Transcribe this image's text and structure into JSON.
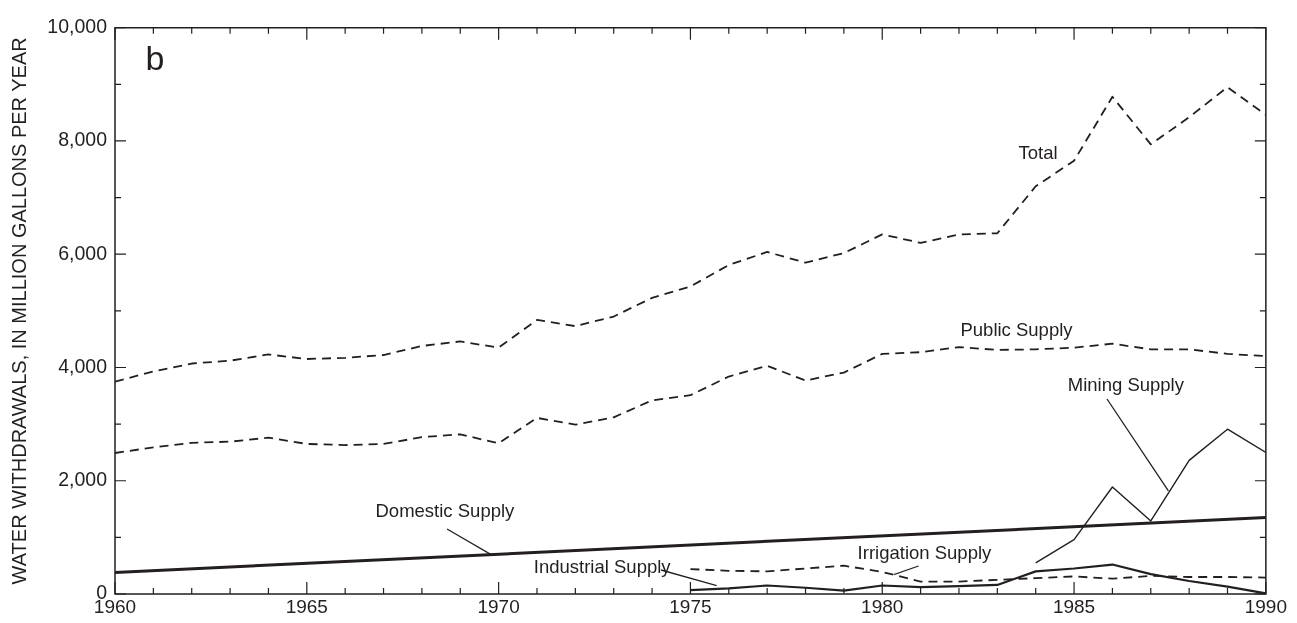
{
  "chart_data": {
    "type": "line",
    "ylabel": "WATER WITHDRAWALS, IN MILLION GALLONS PER YEAR",
    "annotations": [
      "b"
    ],
    "xlim": [
      1960,
      1990
    ],
    "ylim": [
      0,
      10000
    ],
    "xticks": [
      1960,
      {
        "value": 1961,
        "label": null
      },
      {
        "value": 1962,
        "label": null
      },
      {
        "value": 1963,
        "label": null
      },
      {
        "value": 1964,
        "label": null
      },
      1965,
      {
        "value": 1966,
        "label": null
      },
      {
        "value": 1967,
        "label": null
      },
      {
        "value": 1968,
        "label": null
      },
      {
        "value": 1969,
        "label": null
      },
      1970,
      {
        "value": 1971,
        "label": null
      },
      {
        "value": 1972,
        "label": null
      },
      {
        "value": 1973,
        "label": null
      },
      {
        "value": 1974,
        "label": null
      },
      1975,
      {
        "value": 1976,
        "label": null
      },
      {
        "value": 1977,
        "label": null
      },
      {
        "value": 1978,
        "label": null
      },
      {
        "value": 1979,
        "label": null
      },
      1980,
      {
        "value": 1981,
        "label": null
      },
      {
        "value": 1982,
        "label": null
      },
      {
        "value": 1983,
        "label": null
      },
      {
        "value": 1984,
        "label": null
      },
      1985,
      {
        "value": 1986,
        "label": null
      },
      {
        "value": 1987,
        "label": null
      },
      {
        "value": 1988,
        "label": null
      },
      {
        "value": 1989,
        "label": null
      },
      1990
    ],
    "yticks": [
      0,
      {
        "value": 1000,
        "label": null
      },
      {
        "value": 2000,
        "label": "2,000"
      },
      {
        "value": 3000,
        "label": null
      },
      {
        "value": 4000,
        "label": "4,000"
      },
      {
        "value": 5000,
        "label": null
      },
      {
        "value": 6000,
        "label": "6,000"
      },
      {
        "value": 7000,
        "label": null
      },
      {
        "value": 8000,
        "label": "8,000"
      },
      {
        "value": 9000,
        "label": null
      },
      {
        "value": 10000,
        "label": "10,000"
      }
    ],
    "grid": false,
    "legend": false,
    "marker": "none",
    "series": [
      {
        "name": "Total",
        "color": "#231f20",
        "line_style": "dashed",
        "x": [
          1960,
          1961,
          1962,
          1963,
          1964,
          1965,
          1966,
          1967,
          1968,
          1969,
          1970,
          1971,
          1972,
          1973,
          1974,
          1975,
          1976,
          1977,
          1978,
          1979,
          1980,
          1981,
          1982,
          1983,
          1984,
          1985,
          1986,
          1987,
          1988,
          1989,
          1990
        ],
        "values": [
          3750,
          3930,
          4070,
          4120,
          4230,
          4150,
          4170,
          4220,
          4380,
          4460,
          4350,
          4840,
          4730,
          4900,
          5230,
          5430,
          5810,
          6040,
          5850,
          6020,
          6350,
          6200,
          6350,
          6370,
          7200,
          7650,
          8780,
          7940,
          8420,
          8950,
          8460
        ]
      },
      {
        "name": "Public Supply",
        "color": "#231f20",
        "line_style": "dashed",
        "x": [
          1960,
          1961,
          1962,
          1963,
          1964,
          1965,
          1966,
          1967,
          1968,
          1969,
          1970,
          1971,
          1972,
          1973,
          1974,
          1975,
          1976,
          1977,
          1978,
          1979,
          1980,
          1981,
          1982,
          1983,
          1984,
          1985,
          1986,
          1987,
          1988,
          1989,
          1990
        ],
        "values": [
          2490,
          2590,
          2670,
          2690,
          2760,
          2650,
          2630,
          2650,
          2770,
          2820,
          2660,
          3110,
          2990,
          3120,
          3420,
          3510,
          3840,
          4030,
          3770,
          3910,
          4240,
          4270,
          4360,
          4310,
          4320,
          4350,
          4420,
          4320,
          4320,
          4240,
          4200
        ]
      },
      {
        "name": "Mining Supply",
        "color": "#231f20",
        "line_style": "solid",
        "x": [
          1984,
          1985,
          1986,
          1987,
          1988,
          1989,
          1990
        ],
        "values": [
          550,
          960,
          1890,
          1290,
          2360,
          2910,
          2500
        ]
      },
      {
        "name": "Domestic Supply",
        "color": "#231f20",
        "line_style": "solid",
        "x": [
          1960,
          1990
        ],
        "values": [
          380,
          1350
        ]
      },
      {
        "name": "Irrigation Supply",
        "color": "#231f20",
        "line_style": "dashed",
        "x": [
          1975,
          1976,
          1977,
          1978,
          1979,
          1980,
          1981,
          1982,
          1983,
          1984,
          1985,
          1986,
          1987,
          1988,
          1989,
          1990
        ],
        "values": [
          440,
          410,
          400,
          450,
          500,
          390,
          220,
          220,
          250,
          280,
          310,
          270,
          320,
          300,
          300,
          290
        ]
      },
      {
        "name": "Industrial Supply",
        "color": "#231f20",
        "line_style": "solid",
        "x": [
          1975,
          1976,
          1977,
          1978,
          1979,
          1980,
          1981,
          1982,
          1983,
          1984,
          1985,
          1986,
          1987,
          1988,
          1989,
          1990
        ],
        "values": [
          70,
          100,
          150,
          110,
          60,
          150,
          120,
          140,
          160,
          400,
          450,
          520,
          350,
          230,
          130,
          10
        ]
      }
    ]
  }
}
